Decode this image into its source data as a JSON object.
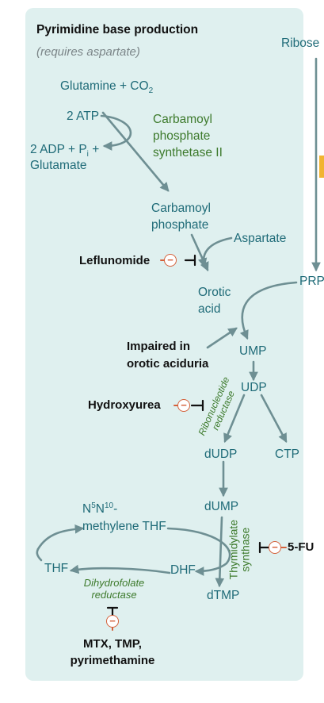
{
  "title": "Pyrimidine base production",
  "subtitle": "(requires aspartate)",
  "nodes": {
    "ribose": "Ribose",
    "glutamine_co2": "Glutamine + CO",
    "co2_sub": "2",
    "atp": "2 ATP",
    "adp_line1": "2 ADP + P",
    "pi_sub": "i",
    "adp_plus": " +",
    "glutamate": "Glutamate",
    "carbamoyl_phosphate_1": "Carbamoyl",
    "carbamoyl_phosphate_2": "phosphate",
    "aspartate": "Aspartate",
    "prpp": "PRPP",
    "orotic_1": "Orotic",
    "orotic_2": "acid",
    "ump": "UMP",
    "udp": "UDP",
    "dudp": "dUDP",
    "ctp": "CTP",
    "dump": "dUMP",
    "dtmp": "dTMP",
    "dhf": "DHF",
    "thf": "THF",
    "methylene_pre": "N",
    "methylene_sup1": "5",
    "methylene_n": "N",
    "methylene_sup2": "10",
    "methylene_dash": "-",
    "methylene_2": "methylene THF"
  },
  "enzymes": {
    "cps_1": "Carbamoyl",
    "cps_2": "phosphate",
    "cps_3": "synthetase II",
    "rnr_1": "Ribonucleotide",
    "rnr_2": "reductase",
    "ts_1": "Thymidylate",
    "ts_2": "synthase",
    "dhfr_1": "Dihydrofolate",
    "dhfr_2": "reductase"
  },
  "drugs": {
    "leflunomide": "Leflunomide",
    "hydroxyurea": "Hydroxyurea",
    "fu": "5-FU",
    "mtx_1": "MTX, TMP,",
    "mtx_2": "pyrimethamine"
  },
  "notes": {
    "orotic_1": "Impaired in",
    "orotic_2": "orotic aciduria"
  },
  "inhibit_symbol": "−",
  "colors": {
    "panel": "#dff0ef",
    "arrow": "#6e8f93",
    "teal_text": "#1f6b78",
    "enzyme_text": "#3d7a2c",
    "inhibitor": "#d4613b",
    "accent_ribbon": "#f1b431"
  }
}
